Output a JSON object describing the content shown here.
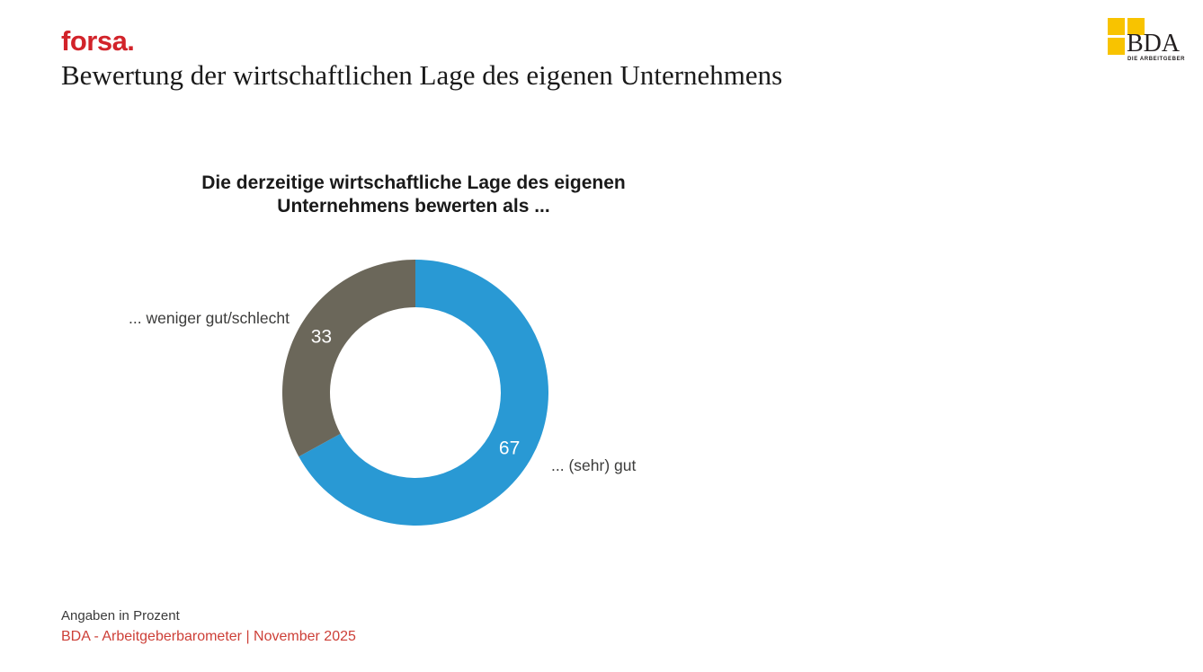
{
  "header": {
    "brand": "forsa.",
    "title": "Bewertung der wirtschaftlichen Lage des eigenen Unternehmens"
  },
  "bda_logo": {
    "acronym": "BDA",
    "subtitle": "DIE ARBEITGEBER",
    "square_color": "#F8C300"
  },
  "chart_data": {
    "type": "pie",
    "donut": true,
    "title": "Die derzeitige wirtschaftliche Lage des eigenen Unternehmens bewerten als ...",
    "unit": "Prozent",
    "start_angle_deg": 0,
    "direction": "clockwise",
    "value_label_color": "#FFFFFF",
    "slices": [
      {
        "label": "... (sehr) gut",
        "value": 67,
        "color": "#2999D4"
      },
      {
        "label": "... weniger gut/schlecht",
        "value": 33,
        "color": "#6B675A"
      }
    ]
  },
  "footer": {
    "note": "Angaben in Prozent",
    "source": "BDA - Arbeitgeberbarometer | November 2025"
  },
  "colors": {
    "brand_red": "#D2232A",
    "source_red": "#CD4038"
  }
}
